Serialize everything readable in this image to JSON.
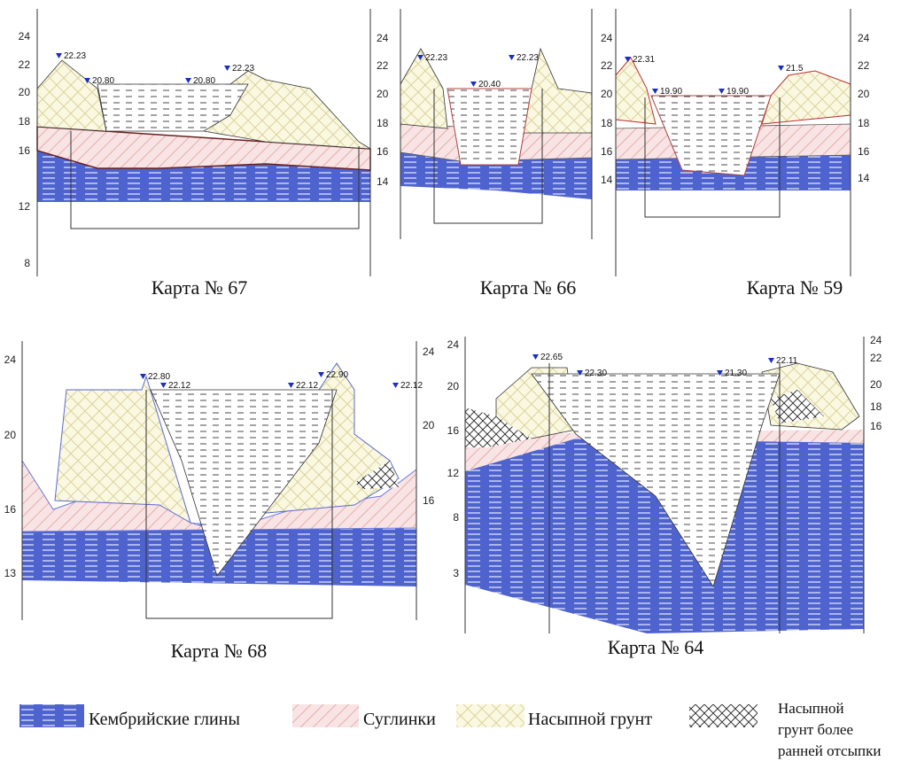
{
  "panels": [
    {
      "caption": "Карта № 67",
      "left_ticks": [
        "24",
        "22",
        "20",
        "18",
        "16",
        "12",
        "8"
      ],
      "right_ticks": [
        "24",
        "22",
        "20",
        "18",
        "16",
        "14"
      ],
      "levels": [
        "22.23",
        "20.80",
        "20.80",
        "22.23"
      ]
    },
    {
      "caption": "Карта № 66",
      "left_ticks": [],
      "right_ticks": [
        "24",
        "22",
        "20",
        "18",
        "16",
        "14"
      ],
      "levels": [
        "22.23",
        "20.40",
        "22.23"
      ]
    },
    {
      "caption": "Карта № 59",
      "left_ticks": [],
      "right_ticks": [
        "24",
        "22",
        "20",
        "18",
        "16",
        "14"
      ],
      "levels": [
        "22.31",
        "19.90",
        "19.90",
        "21.5"
      ]
    },
    {
      "caption": "Карта № 68",
      "left_ticks": [
        "24",
        "20",
        "16",
        "13"
      ],
      "right_ticks": [
        "24",
        "20",
        "16"
      ],
      "levels": [
        "22.80",
        "22.12",
        "22.12",
        "22.90",
        "22.12"
      ]
    },
    {
      "caption": "Карта № 64",
      "left_ticks": [
        "24",
        "20",
        "16",
        "12",
        "8",
        "3"
      ],
      "right_ticks": [
        "24",
        "22",
        "20",
        "18",
        "16"
      ],
      "levels": [
        "22.65",
        "22.30",
        "21.30",
        "22.11"
      ]
    }
  ],
  "legend": [
    {
      "lines": [
        "Кембрийские глины"
      ]
    },
    {
      "lines": [
        "Суглинки"
      ]
    },
    {
      "lines": [
        "Насыпной грунт"
      ]
    },
    {
      "lines": [
        "Насыпной",
        "грунт более",
        "ранней отсыпки"
      ]
    }
  ]
}
